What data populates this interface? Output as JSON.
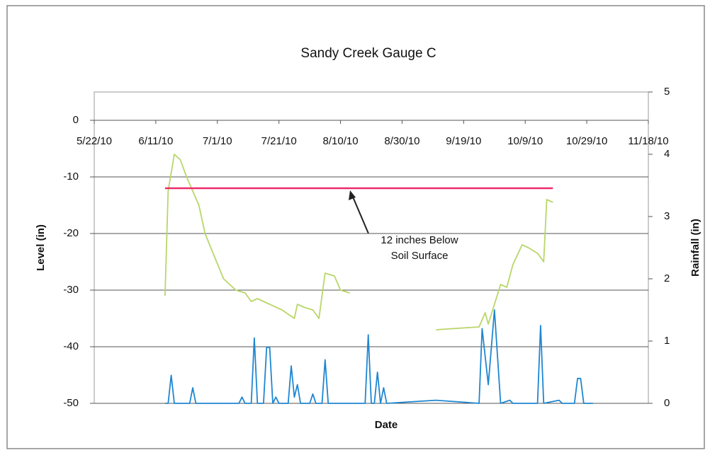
{
  "chart_data": {
    "type": "line",
    "title": "Sandy Creek Gauge C",
    "xlabel": "Date",
    "ylabel": "Level (in)",
    "y2label": "Rainfall (in)",
    "xlim": [
      "5/22/10",
      "11/18/10"
    ],
    "xticks": [
      "5/22/10",
      "6/11/10",
      "7/1/10",
      "7/21/10",
      "8/10/10",
      "8/30/10",
      "9/19/10",
      "10/9/10",
      "10/29/10",
      "11/18/10"
    ],
    "ylim": [
      -50,
      5
    ],
    "yticks": [
      -50,
      -40,
      -30,
      -20,
      -10,
      0
    ],
    "y2lim": [
      0,
      5
    ],
    "y2ticks": [
      0,
      1,
      2,
      3,
      4,
      5
    ],
    "grid": true,
    "series": [
      {
        "color": "#b9d66a",
        "x": [
          "6/14/10",
          "6/15/10",
          "6/17/10",
          "6/19/10",
          "6/21/10",
          "6/25/10",
          "6/27/10",
          "6/30/10",
          "7/3/10",
          "7/7/10",
          "7/10/10",
          "7/12/10",
          "7/14/10",
          "7/18/10",
          "7/20/10",
          "7/22/10",
          "7/26/10",
          "7/27/10",
          "7/29/10",
          "8/1/10",
          "8/3/10",
          "8/5/10",
          "8/8/10",
          "8/10/10",
          "8/13/10",
          "8/25/10",
          "9/10/10",
          "9/24/10",
          "9/26/10",
          "9/27/10",
          "10/1/10",
          "10/3/10",
          "10/5/10",
          "10/8/10",
          "10/10/10",
          "10/13/10",
          "10/15/10",
          "10/16/10",
          "10/18/10"
        ],
        "values": [
          -31,
          -12.5,
          -6,
          -7,
          -10,
          -15,
          -20,
          -24,
          -28,
          -30,
          -30.5,
          -32,
          -31.5,
          -32.5,
          -33,
          -33.5,
          -35,
          -32.5,
          -33,
          -33.5,
          -35,
          -27,
          -27.5,
          -30,
          -30.5,
          null,
          -37,
          -36.5,
          -34,
          -36,
          -29,
          -29.5,
          -25.5,
          -22,
          -22.5,
          -23.5,
          -25,
          -14,
          -14.5
        ]
      },
      {
        "color": "#ee2a6a",
        "x": [
          "6/14/10",
          "10/18/10"
        ],
        "values": [
          -12,
          -12
        ]
      },
      {
        "color": "#1f86d1",
        "axis": "y2",
        "x": [
          "6/14/10",
          "6/15/10",
          "6/16/10",
          "6/17/10",
          "6/22/10",
          "6/23/10",
          "6/24/10",
          "7/8/10",
          "7/9/10",
          "7/10/10",
          "7/12/10",
          "7/13/10",
          "7/14/10",
          "7/16/10",
          "7/17/10",
          "7/18/10",
          "7/19/10",
          "7/20/10",
          "7/21/10",
          "7/24/10",
          "7/25/10",
          "7/26/10",
          "7/27/10",
          "7/28/10",
          "7/31/10",
          "8/1/10",
          "8/2/10",
          "8/4/10",
          "8/5/10",
          "8/6/10",
          "8/18/10",
          "8/19/10",
          "8/20/10",
          "8/21/10",
          "8/22/10",
          "8/23/10",
          "8/24/10",
          "8/25/10",
          "9/10/10",
          "9/24/10",
          "9/25/10",
          "9/27/10",
          "9/29/10",
          "10/1/10",
          "10/4/10",
          "10/5/10",
          "10/13/10",
          "10/14/10",
          "10/15/10",
          "10/20/10",
          "10/21/10",
          "10/25/10",
          "10/26/10",
          "10/27/10",
          "10/28/10",
          "10/31/10"
        ],
        "values": [
          0,
          0,
          0.45,
          0,
          0,
          0.25,
          0,
          0,
          0.1,
          0,
          0,
          1.05,
          0,
          0,
          0.9,
          0.9,
          0,
          0.1,
          0,
          0,
          0.6,
          0.1,
          0.3,
          0,
          0,
          0.15,
          0,
          0,
          0.7,
          0,
          0,
          1.1,
          0,
          0,
          0.5,
          0,
          0.25,
          0,
          0.05,
          0,
          1.2,
          0.3,
          1.5,
          0,
          0.05,
          0,
          0,
          1.25,
          0,
          0.05,
          0,
          0,
          0.4,
          0.4,
          0,
          0
        ]
      }
    ],
    "annotation": {
      "lines": [
        "12 inches Below",
        "Soil Surface"
      ]
    }
  }
}
